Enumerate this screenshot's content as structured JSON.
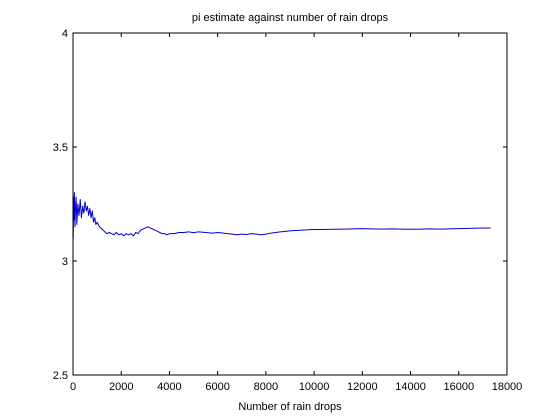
{
  "chart_data": {
    "type": "line",
    "title": "pi estimate against number of rain drops",
    "xlabel": "Number of rain drops",
    "ylabel": "",
    "xlim": [
      0,
      18000
    ],
    "ylim": [
      2.5,
      4
    ],
    "xticks": [
      0,
      2000,
      4000,
      6000,
      8000,
      10000,
      12000,
      14000,
      16000,
      18000
    ],
    "xtick_labels": [
      "0",
      "2000",
      "4000",
      "6000",
      "8000",
      "10000",
      "12000",
      "14000",
      "16000",
      "18000"
    ],
    "yticks": [
      2.5,
      3,
      3.5,
      4
    ],
    "ytick_labels": [
      "2.5",
      "3",
      "3.5",
      "4"
    ],
    "grid": false,
    "legend": "none",
    "series": [
      {
        "color": "#0000cc",
        "x": [
          10,
          25,
          40,
          60,
          80,
          100,
          130,
          160,
          200,
          250,
          300,
          350,
          400,
          450,
          500,
          550,
          600,
          650,
          700,
          750,
          800,
          850,
          900,
          950,
          1000,
          1100,
          1200,
          1300,
          1400,
          1500,
          1600,
          1700,
          1800,
          1900,
          2000,
          2100,
          2200,
          2300,
          2400,
          2500,
          2600,
          2700,
          2800,
          2900,
          3000,
          3100,
          3200,
          3300,
          3400,
          3500,
          3600,
          3700,
          3800,
          3900,
          4000,
          4200,
          4400,
          4600,
          4800,
          5000,
          5200,
          5400,
          5600,
          5800,
          6000,
          6200,
          6400,
          6600,
          6800,
          7000,
          7200,
          7400,
          7600,
          7800,
          8000,
          8200,
          8400,
          8600,
          8800,
          9000,
          9200,
          9400,
          9600,
          9800,
          10000,
          10400,
          10800,
          11200,
          11600,
          12000,
          12400,
          12800,
          13200,
          13600,
          14000,
          14400,
          14800,
          15200,
          15600,
          16000,
          16400,
          16800,
          17300
        ],
        "values": [
          3.1,
          3.28,
          3.18,
          3.3,
          3.15,
          3.22,
          3.28,
          3.16,
          3.25,
          3.2,
          3.27,
          3.19,
          3.24,
          3.21,
          3.26,
          3.22,
          3.24,
          3.2,
          3.23,
          3.19,
          3.22,
          3.17,
          3.19,
          3.16,
          3.17,
          3.15,
          3.14,
          3.13,
          3.12,
          3.125,
          3.12,
          3.115,
          3.125,
          3.115,
          3.12,
          3.11,
          3.12,
          3.115,
          3.12,
          3.11,
          3.125,
          3.12,
          3.135,
          3.14,
          3.145,
          3.15,
          3.145,
          3.14,
          3.135,
          3.13,
          3.125,
          3.12,
          3.12,
          3.115,
          3.12,
          3.12,
          3.125,
          3.125,
          3.128,
          3.124,
          3.128,
          3.126,
          3.124,
          3.122,
          3.125,
          3.123,
          3.12,
          3.118,
          3.115,
          3.118,
          3.116,
          3.12,
          3.118,
          3.115,
          3.118,
          3.122,
          3.125,
          3.128,
          3.13,
          3.132,
          3.134,
          3.135,
          3.136,
          3.137,
          3.138,
          3.138,
          3.139,
          3.14,
          3.141,
          3.142,
          3.141,
          3.14,
          3.141,
          3.14,
          3.139,
          3.14,
          3.141,
          3.14,
          3.141,
          3.142,
          3.143,
          3.144,
          3.145
        ]
      }
    ]
  }
}
